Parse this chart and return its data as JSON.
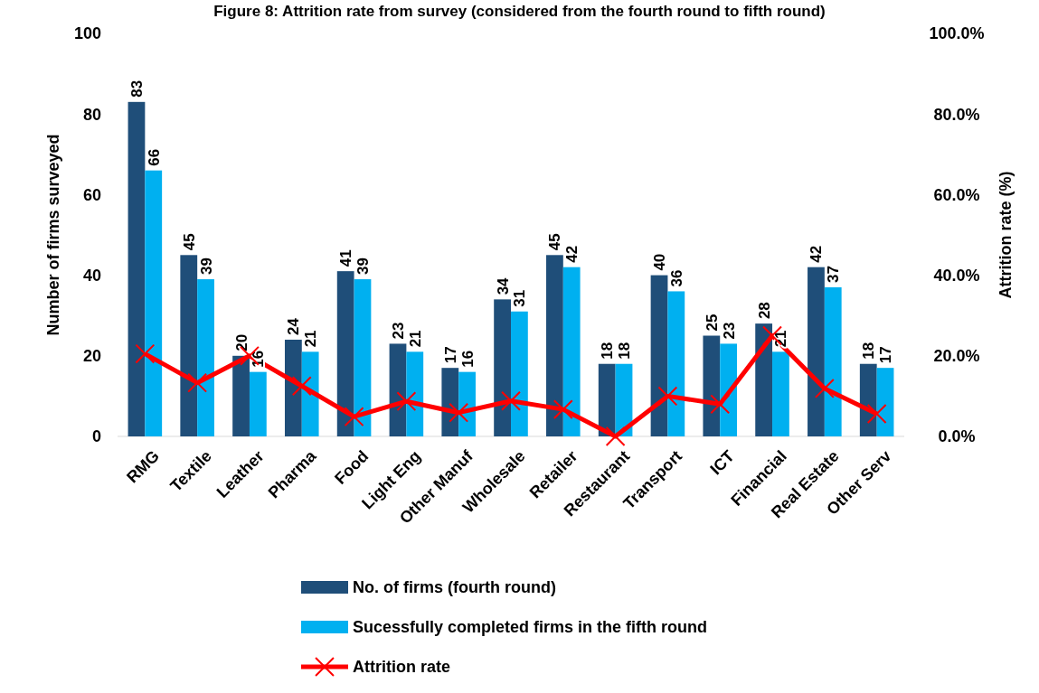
{
  "chart_data": {
    "type": "bar",
    "title": "Figure 8: Attrition rate from survey (considered from the fourth round to fifth round)",
    "ylabel": "Number of firms surveyed",
    "y2label": "Attrition rate (%)",
    "categories": [
      "RMG",
      "Textile",
      "Leather",
      "Pharma",
      "Food",
      "Light Eng",
      "Other Manuf",
      "Wholesale",
      "Retailer",
      "Restaurant",
      "Transport",
      "ICT",
      "Financial",
      "Real Estate",
      "Other Serv"
    ],
    "series": [
      {
        "name": "No. of firms (fourth round)",
        "color": "#1f4e79",
        "values": [
          83,
          45,
          20,
          24,
          41,
          23,
          17,
          34,
          45,
          18,
          40,
          25,
          28,
          42,
          18
        ],
        "value_labels": [
          "83",
          "45",
          "20",
          "24",
          "41",
          "23",
          "17",
          "34",
          "45",
          "18",
          "40",
          "25",
          "28",
          "42",
          "18"
        ]
      },
      {
        "name": "Sucessfully completed firms in the fifth round",
        "color": "#00b0f0",
        "values": [
          66,
          39,
          16,
          21,
          39,
          21,
          16,
          31,
          42,
          18,
          36,
          23,
          21,
          37,
          17
        ],
        "value_labels": [
          "66",
          "39",
          "16",
          "21",
          "39",
          "21",
          "16",
          "31",
          "42",
          "18",
          "36",
          "23",
          "21",
          "37",
          "17"
        ]
      },
      {
        "name": "Attrition rate",
        "type": "line",
        "axis": "y2",
        "color": "#ff0000",
        "marker": "cross",
        "values": [
          20.5,
          13.3,
          20,
          12.5,
          4.9,
          8.7,
          5.9,
          8.8,
          6.7,
          0,
          10,
          8,
          25,
          11.9,
          5.6
        ]
      }
    ],
    "ylim": [
      0,
      100
    ],
    "yticks": [
      0,
      20,
      40,
      60,
      80,
      100
    ],
    "y2lim": [
      0,
      100
    ],
    "y2ticks": [
      {
        "value": 0,
        "label": "0.0%"
      },
      {
        "value": 20,
        "label": "20.0%"
      },
      {
        "value": 40,
        "label": "40.0%"
      },
      {
        "value": 60,
        "label": "60.0%"
      },
      {
        "value": 80,
        "label": "80.0%"
      },
      {
        "value": 100,
        "label": "100.0%"
      }
    ],
    "grid": false,
    "legend": "bottom"
  }
}
